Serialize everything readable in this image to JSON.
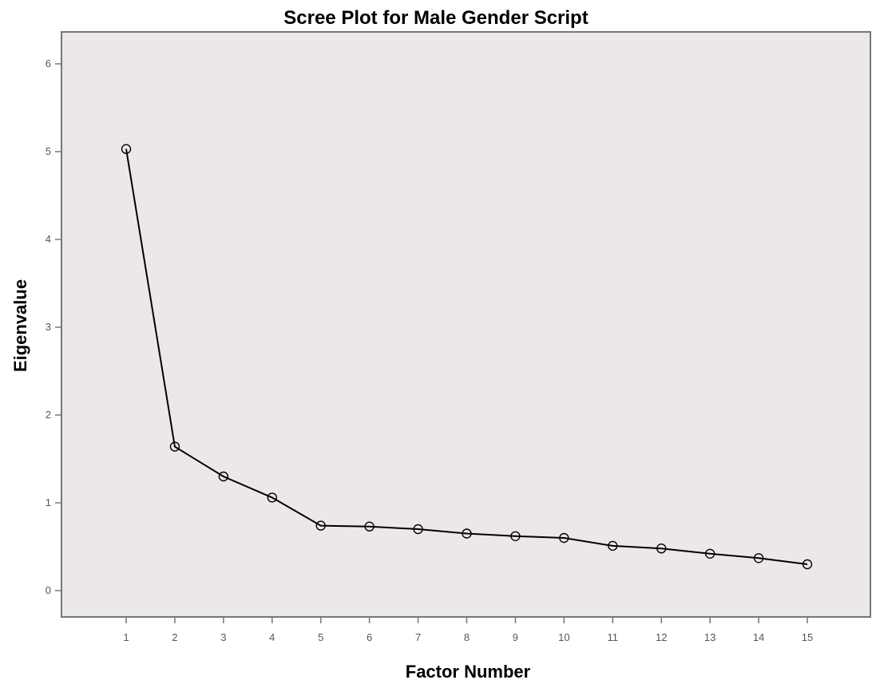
{
  "chart_data": {
    "type": "line",
    "title": "Scree Plot for Male Gender Script",
    "xlabel": "Factor Number",
    "ylabel": "Eigenvalue",
    "x": [
      1,
      2,
      3,
      4,
      5,
      6,
      7,
      8,
      9,
      10,
      11,
      12,
      13,
      14,
      15
    ],
    "y": [
      5.03,
      1.64,
      1.3,
      1.06,
      0.74,
      0.73,
      0.7,
      0.65,
      0.62,
      0.6,
      0.51,
      0.48,
      0.42,
      0.37,
      0.3
    ],
    "xticks": [
      "1",
      "2",
      "3",
      "4",
      "5",
      "6",
      "7",
      "8",
      "9",
      "10",
      "11",
      "12",
      "13",
      "14",
      "15"
    ],
    "yticks": [
      "0",
      "1",
      "2",
      "3",
      "4",
      "5",
      "6"
    ],
    "ylim": [
      0,
      6
    ],
    "xlim": [
      1,
      15
    ],
    "grid": false,
    "legend": "none",
    "colors": {
      "plot_background": "#ece8e7",
      "line": "#000000",
      "marker_stroke": "#000000",
      "axis_frame": "#777777",
      "tick_label": "#555555"
    },
    "marker": "open-circle"
  }
}
